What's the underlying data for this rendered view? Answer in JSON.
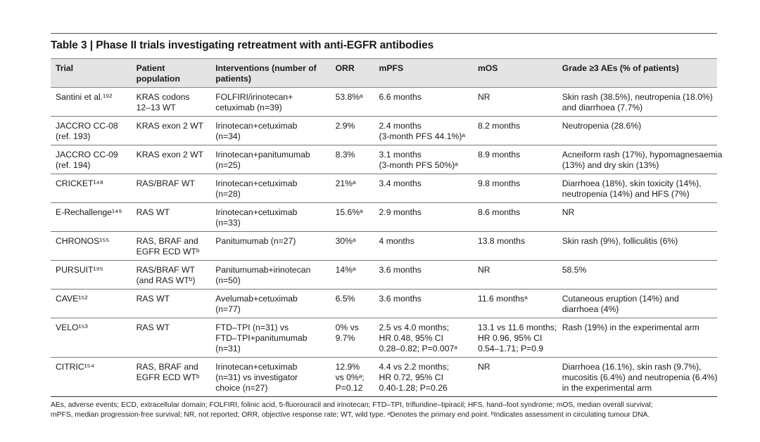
{
  "title": "Table 3 | Phase II trials investigating retreatment with anti-EGFR antibodies",
  "headers": [
    [
      "Trial"
    ],
    [
      "Patient",
      "population"
    ],
    [
      "Interventions (number of",
      "patients)"
    ],
    [
      "ORR"
    ],
    [
      "mPFS"
    ],
    [
      "mOS"
    ],
    [
      "Grade ≥3 AEs (% of patients)"
    ]
  ],
  "rows": [
    [
      [
        "Santini et al.¹⁹²"
      ],
      [
        "KRAS codons",
        "12–13 WT"
      ],
      [
        "FOLFIRI/irinotecan+",
        "cetuximab (n=39)"
      ],
      [
        "53.8%ᵃ"
      ],
      [
        "6.6 months"
      ],
      [
        "NR"
      ],
      [
        "Skin rash (38.5%), neutropenia (18.0%)",
        "and diarrhoea (7.7%)"
      ]
    ],
    [
      [
        "JACCRO CC-08",
        "(ref. 193)"
      ],
      [
        "KRAS exon 2 WT"
      ],
      [
        "Irinotecan+cetuximab",
        "(n=34)"
      ],
      [
        "2.9%"
      ],
      [
        "2.4 months",
        "(3-month PFS 44.1%)ᵃ"
      ],
      [
        "8.2 months"
      ],
      [
        "Neutropenia (28.6%)"
      ]
    ],
    [
      [
        "JACCRO CC-09",
        "(ref. 194)"
      ],
      [
        "KRAS exon 2 WT"
      ],
      [
        "Irinotecan+panitumumab",
        "(n=25)"
      ],
      [
        "8.3%"
      ],
      [
        "3.1 months",
        "(3-month PFS 50%)ᵃ"
      ],
      [
        "8.9 months"
      ],
      [
        "Acneiform rash (17%), hypomagnesaemia",
        "(13%) and dry skin (13%)"
      ]
    ],
    [
      [
        "CRICKET¹⁴⁸"
      ],
      [
        "RAS/BRAF WT"
      ],
      [
        "Irinotecan+cetuximab",
        "(n=28)"
      ],
      [
        "21%ᵃ"
      ],
      [
        "3.4 months"
      ],
      [
        "9.8 months"
      ],
      [
        "Diarrhoea (18%), skin toxicity (14%),",
        "neutropenia (14%) and HFS (7%)"
      ]
    ],
    [
      [
        "E-Rechallenge¹⁴⁹"
      ],
      [
        "RAS WT"
      ],
      [
        "Irinotecan+cetuximab",
        "(n=33)"
      ],
      [
        "15.6%ᵃ"
      ],
      [
        "2.9 months"
      ],
      [
        "8.6 months"
      ],
      [
        "NR"
      ]
    ],
    [
      [
        "CHRONOS¹⁵⁵"
      ],
      [
        "RAS, BRAF and",
        "EGFR ECD WTᵇ"
      ],
      [
        "Panitumumab (n=27)"
      ],
      [
        "30%ᵃ"
      ],
      [
        "4 months"
      ],
      [
        "13.8 months"
      ],
      [
        "Skin rash (9%), folliculitis (6%)"
      ]
    ],
    [
      [
        "PURSUIT¹⁹⁵"
      ],
      [
        "RAS/BRAF WT",
        "(and RAS WTᵇ)"
      ],
      [
        "Panitumumab+irinotecan",
        "(n=50)"
      ],
      [
        "14%ᵃ"
      ],
      [
        "3.6 months"
      ],
      [
        "NR"
      ],
      [
        "58.5%"
      ]
    ],
    [
      [
        "CAVE¹⁵²"
      ],
      [
        "RAS WT"
      ],
      [
        "Avelumab+cetuximab",
        "(n=77)"
      ],
      [
        "6.5%"
      ],
      [
        "3.6 months"
      ],
      [
        "11.6 monthsᵃ"
      ],
      [
        "Cutaneous eruption (14%) and",
        "diarrhoea (4%)"
      ]
    ],
    [
      [
        "VELO¹⁵³"
      ],
      [
        "RAS WT"
      ],
      [
        "FTD–TPI (n=31) vs",
        "FTD–TPI+panitumumab",
        "(n=31)"
      ],
      [
        "0% vs",
        "9.7%"
      ],
      [
        "2.5 vs 4.0 months;",
        "HR 0.48, 95% CI",
        "0.28–0.82; P=0.007ᵃ"
      ],
      [
        "13.1 vs 11.6 months;",
        "HR 0.96, 95% CI",
        "0.54–1.71; P=0.9"
      ],
      [
        "Rash (19%) in the experimental arm"
      ]
    ],
    [
      [
        "CITRIC¹⁵⁴"
      ],
      [
        "RAS, BRAF and",
        "EGFR ECD WTᵇ"
      ],
      [
        "Irinotecan+cetuximab",
        "(n=31) vs investigator",
        "choice (n=27)"
      ],
      [
        "12.9%",
        "vs 0%ᵃ;",
        "P=0.12"
      ],
      [
        "4.4 vs 2.2 months;",
        "HR 0.72, 95% CI",
        "0.40-1.28; P=0.26"
      ],
      [
        "NR"
      ],
      [
        "Diarrhoea (16.1%), skin rash (9.7%),",
        "mucositis (6.4%) and neutropenia (6.4%)",
        "in the experimental arm"
      ]
    ]
  ],
  "footnote": [
    "AEs, adverse events; ECD, extracellular domain; FOLFIRI, folinic acid, 5-fluorouracil and irinotecan; FTD–TPI, trifluridine–tipiracil; HFS, hand–foot syndrome; mOS, median overall survival;",
    "mPFS, median progression-free survival; NR, not reported; ORR, objective response rate; WT, wild type. ᵃDenotes the primary end point. ᵇIndicates assessment in circulating tumour DNA."
  ]
}
